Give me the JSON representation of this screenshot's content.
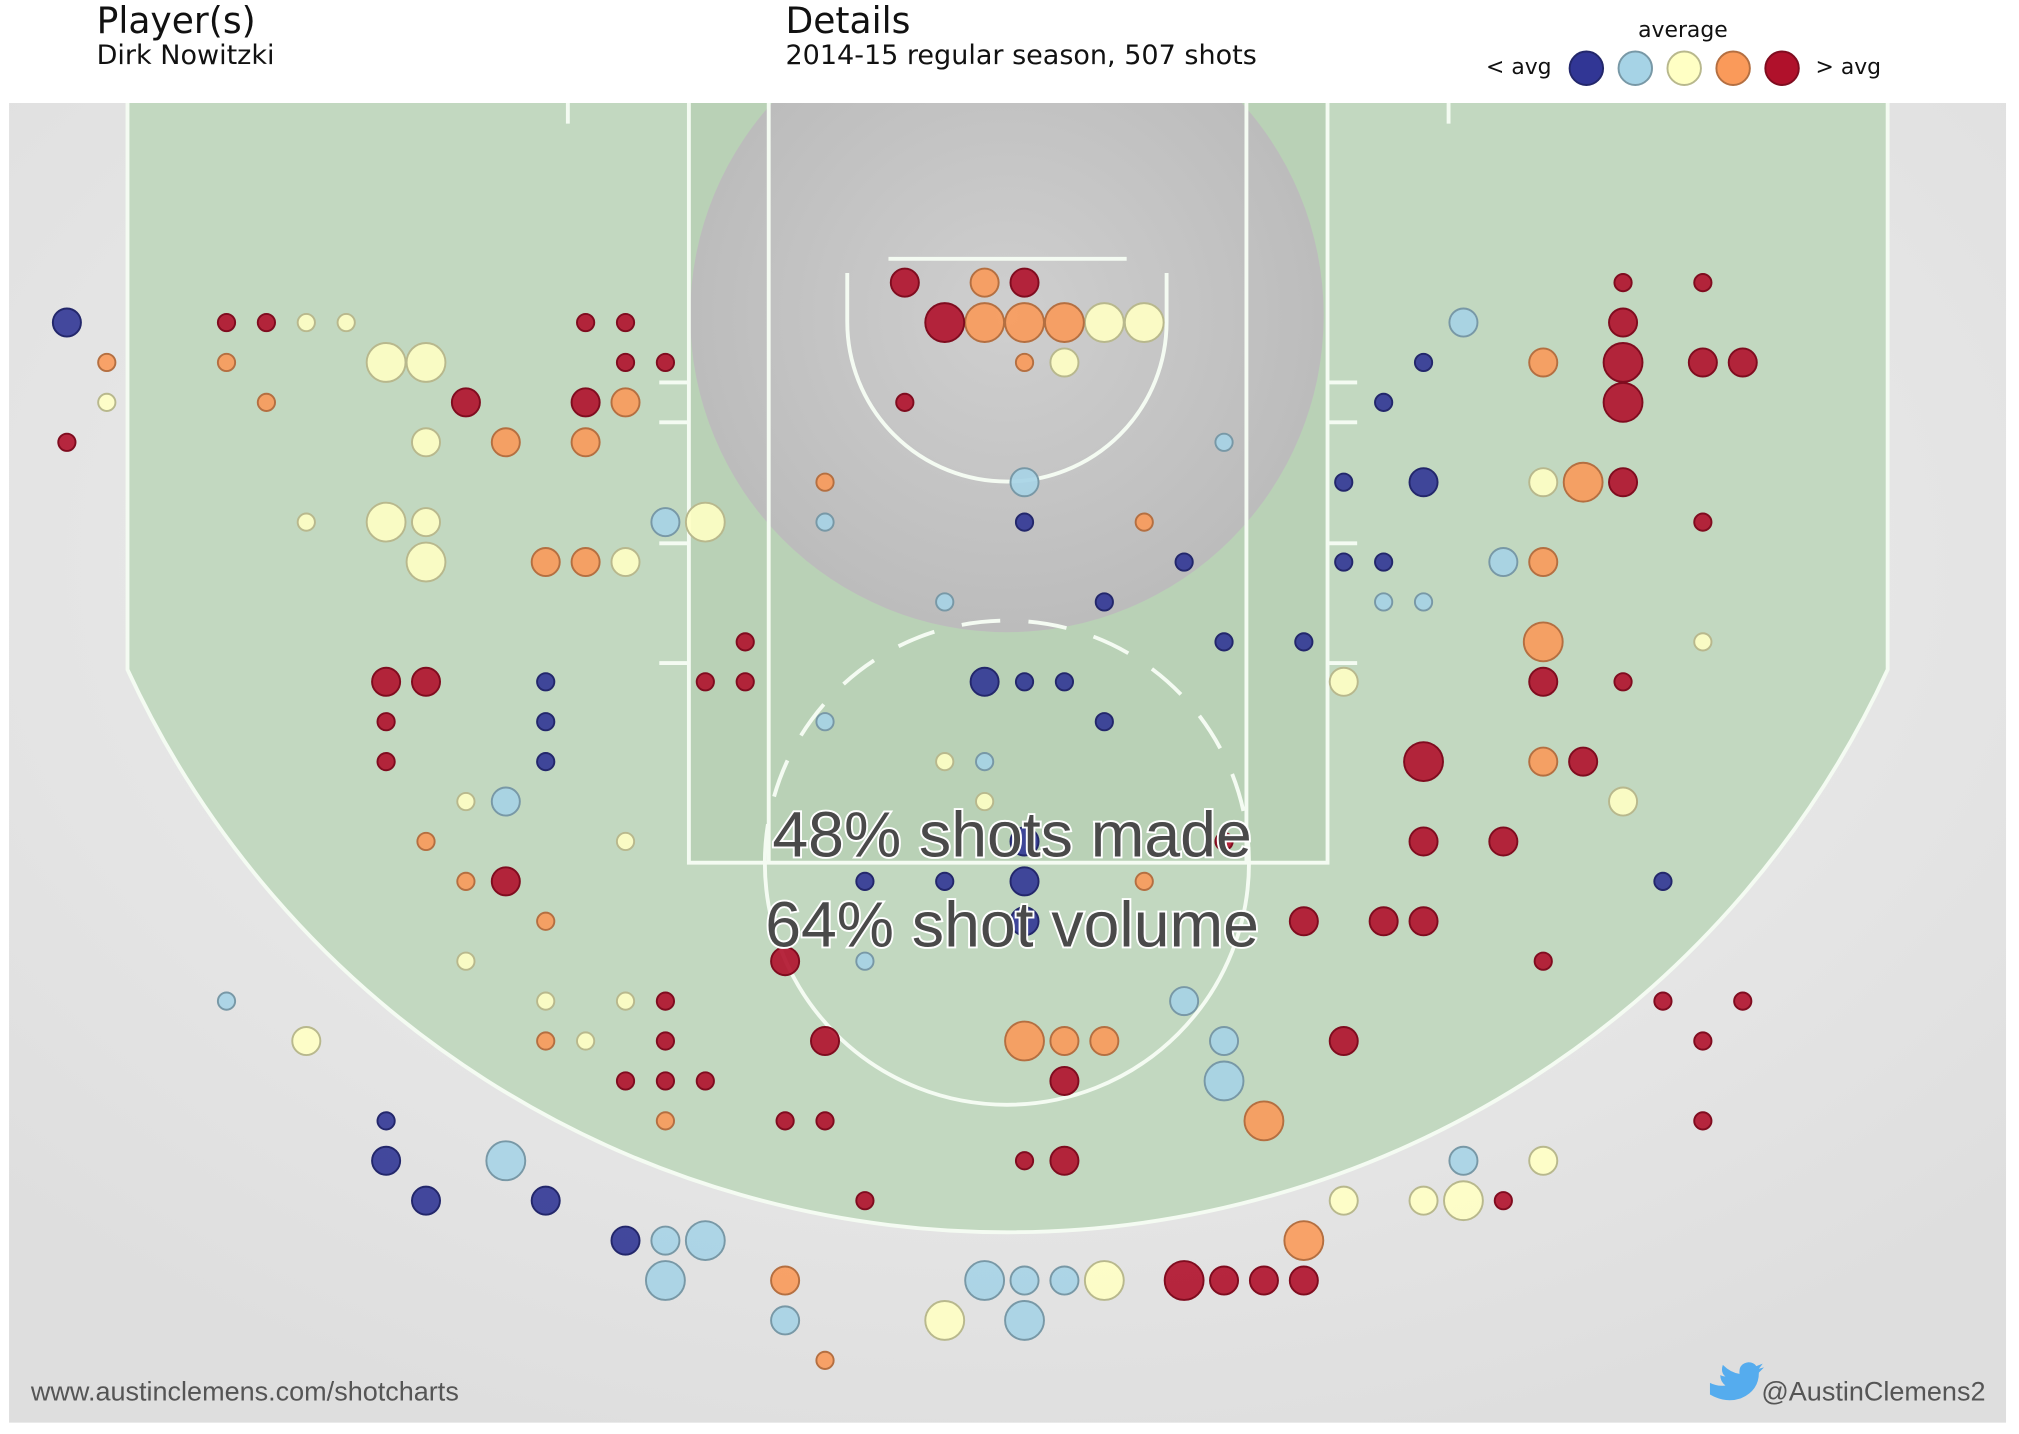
{
  "header": {
    "player_heading": "Player(s)",
    "player": "Dirk Nowitzki",
    "details_heading": "Details",
    "details": "2014-15 regular season, 507 shots"
  },
  "legend": {
    "title": "average",
    "low": "< avg",
    "high": "> avg"
  },
  "annotations": [
    "48% shots made",
    "64% shot volume"
  ],
  "footer": {
    "left": "www.austinclemens.com/shotcharts",
    "right": "@AustinClemens2"
  },
  "chart_data": {
    "type": "scatter",
    "xlim": [
      -1.45,
      48.6
    ],
    "ylim": [
      -4.5,
      28.5
    ],
    "series": [
      {
        "color": "#313695",
        "x": [
          0,
          34,
          33,
          32,
          34,
          24,
          28,
          32,
          33,
          26,
          29,
          31,
          12,
          23,
          24,
          25,
          12,
          26,
          12,
          24,
          20,
          22,
          24,
          40,
          24,
          8,
          8,
          9,
          12,
          14
        ],
        "values": [
          1,
          2,
          3,
          5,
          5,
          6,
          7,
          7,
          7,
          8,
          9,
          9,
          10,
          10,
          10,
          10,
          11,
          11,
          12,
          14,
          15,
          15,
          15,
          15,
          16,
          21,
          22,
          23,
          23,
          24
        ],
        "sizes": [
          2,
          1,
          1,
          1,
          2,
          1,
          1,
          1,
          1,
          1,
          1,
          1,
          1,
          2,
          1,
          1,
          1,
          1,
          1,
          2,
          1,
          1,
          2,
          1,
          2,
          1,
          2,
          2,
          2,
          2
        ]
      },
      {
        "color": "#a6d3e6",
        "x": [
          35,
          29,
          24,
          15,
          19,
          36,
          22,
          33,
          34,
          19,
          23,
          11,
          20,
          4,
          28,
          29,
          29,
          35,
          11,
          15,
          16,
          15,
          23,
          24,
          25,
          18,
          24
        ],
        "values": [
          1,
          4,
          5,
          6,
          6,
          7,
          8,
          8,
          8,
          11,
          12,
          13,
          17,
          18,
          18,
          19,
          20,
          22,
          22,
          24,
          24,
          25,
          25,
          25,
          25,
          26,
          26
        ],
        "sizes": [
          2,
          1,
          2,
          2,
          1,
          2,
          1,
          1,
          1,
          1,
          1,
          2,
          1,
          1,
          2,
          2,
          3,
          2,
          3,
          2,
          3,
          3,
          3,
          2,
          2,
          2,
          3
        ]
      },
      {
        "color": "#ffffc4",
        "x": [
          6,
          7,
          26,
          27,
          8,
          9,
          25,
          1,
          9,
          37,
          6,
          8,
          9,
          16,
          9,
          14,
          41,
          32,
          22,
          10,
          23,
          39,
          14,
          10,
          12,
          14,
          6,
          13,
          37,
          32,
          34,
          35,
          26,
          22
        ],
        "values": [
          1,
          1,
          1,
          1,
          2,
          2,
          2,
          3,
          4,
          5,
          6,
          6,
          6,
          6,
          7,
          7,
          9,
          10,
          12,
          13,
          13,
          13,
          14,
          17,
          18,
          18,
          19,
          19,
          22,
          23,
          23,
          23,
          25,
          26
        ],
        "sizes": [
          1,
          1,
          3,
          3,
          3,
          3,
          2,
          1,
          2,
          2,
          1,
          3,
          2,
          3,
          3,
          2,
          1,
          2,
          1,
          1,
          1,
          2,
          1,
          1,
          1,
          1,
          2,
          1,
          2,
          2,
          2,
          3,
          3,
          3
        ]
      },
      {
        "color": "#fa9a5a",
        "x": [
          23,
          23,
          24,
          25,
          1,
          4,
          24,
          37,
          5,
          14,
          11,
          13,
          19,
          38,
          27,
          12,
          13,
          37,
          37,
          37,
          9,
          10,
          27,
          12,
          12,
          24,
          25,
          26,
          15,
          30,
          31,
          18,
          19
        ],
        "values": [
          0,
          1,
          1,
          1,
          2,
          2,
          2,
          2,
          3,
          3,
          4,
          4,
          5,
          5,
          6,
          7,
          7,
          7,
          9,
          12,
          14,
          15,
          15,
          16,
          19,
          19,
          19,
          19,
          21,
          21,
          24,
          25,
          27
        ],
        "sizes": [
          2,
          3,
          3,
          3,
          1,
          1,
          1,
          2,
          1,
          2,
          2,
          2,
          1,
          3,
          1,
          2,
          2,
          2,
          3,
          2,
          1,
          1,
          1,
          1,
          1,
          3,
          2,
          2,
          1,
          3,
          3,
          2,
          1
        ]
      },
      {
        "color": "#b0112b",
        "x": [
          21,
          24,
          39,
          41,
          4,
          5,
          13,
          14,
          22,
          39,
          14,
          15,
          39,
          41,
          42,
          10,
          13,
          21,
          39,
          0,
          39,
          41,
          17,
          8,
          9,
          16,
          17,
          37,
          39,
          8,
          8,
          34,
          38,
          29,
          34,
          36,
          11,
          31,
          33,
          34,
          18,
          37,
          15,
          40,
          42,
          15,
          19,
          32,
          41,
          14,
          15,
          16,
          25,
          18,
          19,
          41,
          24,
          25,
          20,
          36,
          28,
          29,
          30,
          31
        ],
        "values": [
          0,
          0,
          0,
          0,
          1,
          1,
          1,
          1,
          1,
          1,
          2,
          2,
          2,
          2,
          2,
          3,
          3,
          3,
          3,
          4,
          5,
          6,
          9,
          10,
          10,
          10,
          10,
          10,
          10,
          11,
          12,
          12,
          12,
          14,
          14,
          14,
          15,
          16,
          16,
          16,
          17,
          17,
          18,
          18,
          18,
          19,
          19,
          19,
          19,
          20,
          20,
          20,
          20,
          21,
          21,
          21,
          22,
          22,
          23,
          23,
          25,
          25,
          25,
          25
        ],
        "sizes": [
          2,
          2,
          1,
          1,
          1,
          1,
          1,
          1,
          3,
          2,
          1,
          1,
          3,
          2,
          2,
          2,
          2,
          1,
          3,
          1,
          2,
          1,
          1,
          2,
          2,
          1,
          1,
          2,
          1,
          1,
          1,
          3,
          2,
          1,
          2,
          2,
          2,
          2,
          2,
          2,
          2,
          1,
          1,
          1,
          1,
          1,
          2,
          2,
          1,
          1,
          1,
          1,
          2,
          1,
          1,
          1,
          1,
          2,
          1,
          1,
          3,
          2,
          2,
          2
        ]
      }
    ]
  }
}
